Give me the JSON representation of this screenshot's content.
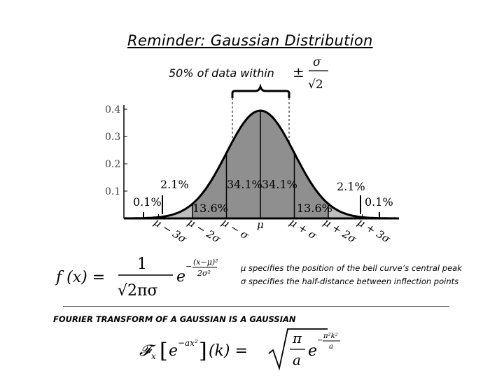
{
  "title": "Reminder: Gaussian Distribution",
  "within_label": "50% of data within",
  "chart_data": {
    "type": "area",
    "yticks": [
      "0.1",
      "0.2",
      "0.3",
      "0.4"
    ],
    "xticks": [
      "μ − 3σ",
      "μ − 2σ",
      "μ − σ",
      "μ",
      "μ + σ",
      "μ + 2σ",
      "μ + 3σ"
    ],
    "region_labels": [
      "0.1%",
      "2.1%",
      "13.6%",
      "34.1%",
      "34.1%",
      "13.6%",
      "2.1%",
      "0.1%"
    ]
  },
  "notes": {
    "mu": "μ specifies the position of the bell curve’s central peak",
    "sigma": "σ specifies the half-distance between inflection points"
  },
  "fourier_title": "FOURIER TRANSFORM OF A GAUSSIAN IS A GAUSSIAN",
  "colors": {
    "light_fill": "#bdbdbd",
    "dark_fill": "#8f8f8f"
  }
}
